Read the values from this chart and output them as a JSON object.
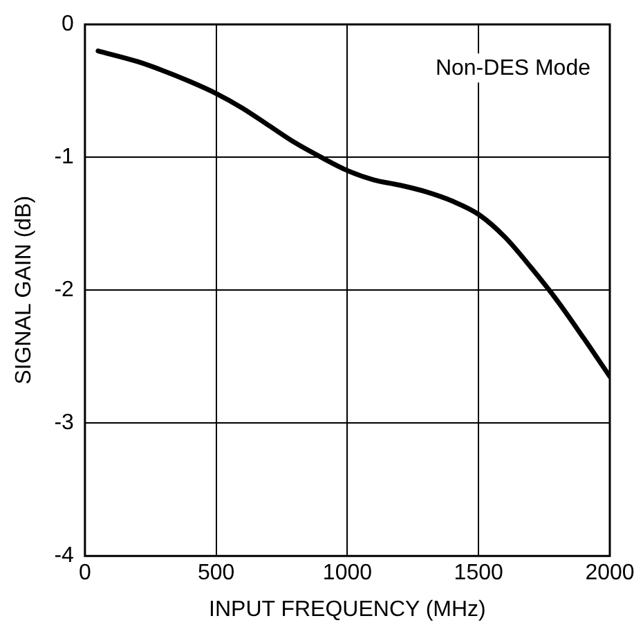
{
  "chart_data": {
    "type": "line",
    "xlabel": "INPUT FREQUENCY (MHz)",
    "ylabel": "SIGNAL GAIN (dB)",
    "annotations": [
      "Non-DES Mode"
    ],
    "x": [
      50,
      200,
      300,
      400,
      500,
      600,
      700,
      800,
      900,
      1000,
      1100,
      1200,
      1300,
      1400,
      1500,
      1600,
      1700,
      1800,
      1900,
      2000
    ],
    "series": [
      {
        "color": "#000000",
        "values": [
          -0.2,
          -0.28,
          -0.35,
          -0.43,
          -0.52,
          -0.63,
          -0.76,
          -0.89,
          -1.0,
          -1.1,
          -1.17,
          -1.21,
          -1.26,
          -1.33,
          -1.43,
          -1.6,
          -1.83,
          -2.08,
          -2.36,
          -2.65
        ]
      }
    ],
    "xlim": [
      0,
      2000
    ],
    "xticks": [
      0,
      500,
      1000,
      1500,
      2000
    ],
    "ylim": [
      -4,
      0
    ],
    "yticks": [
      -4,
      -3,
      -2,
      -1,
      0
    ],
    "grid": true,
    "legend": false,
    "marker": "none",
    "line_style": "solid"
  }
}
